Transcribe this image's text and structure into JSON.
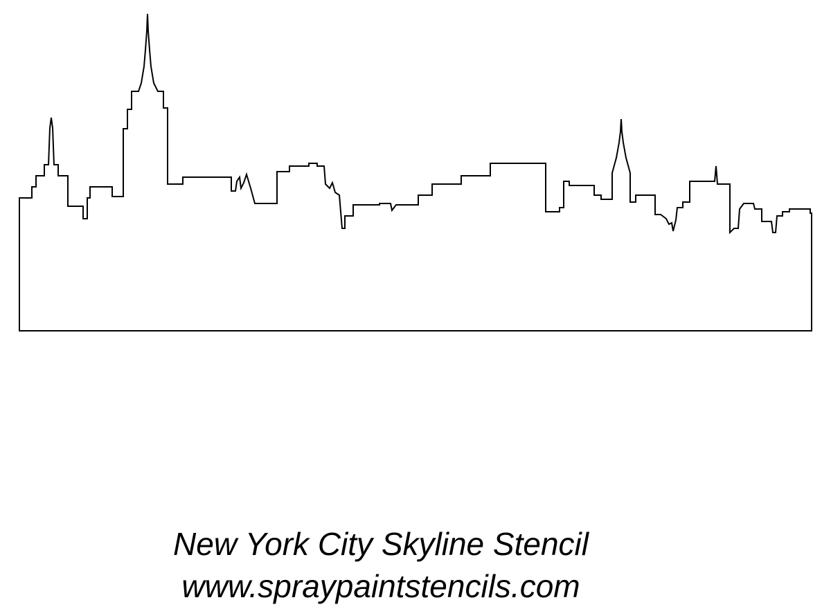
{
  "caption": {
    "title": "New York City Skyline Stencil",
    "website": "www.spraypaintstencils.com"
  },
  "colors": {
    "background": "#ffffff",
    "outline": "#000000",
    "text": "#000000"
  },
  "icons": {
    "stencil": "city-skyline-outline-icon"
  }
}
